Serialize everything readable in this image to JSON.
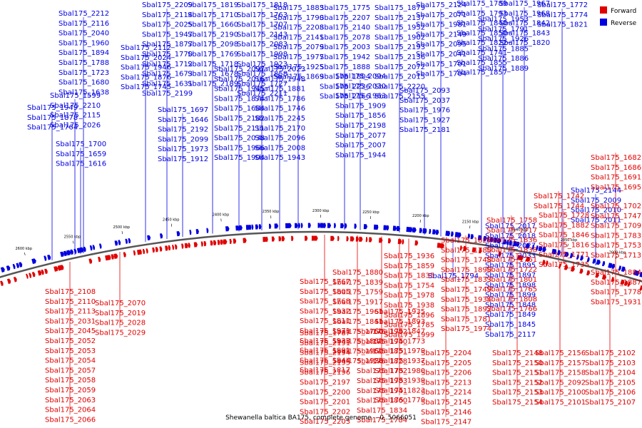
{
  "caption": "Shewanella baltica BA175, complete genome. - 0..5066051",
  "legend": {
    "forward": "Forward",
    "reverse": "Reverse"
  },
  "colors": {
    "forward": "#e00000",
    "reverse": "#0000e0",
    "forward_line": "#e33",
    "reverse_line": "#33e",
    "backbone": "#555"
  },
  "ticks": [
    "1900 kbp",
    "1950 kbp",
    "2000 kbp",
    "2050 kbp",
    "2100 kbp",
    "2150 kbp",
    "2200 kbp",
    "2250 kbp",
    "2300 kbp",
    "2350 kbp",
    "2400 kbp",
    "2450 kbp",
    "2500 kbp",
    "2550 kbp",
    "2600 kbp",
    "2650 kbp"
  ],
  "reverse_labels": [
    "Sbal175_2212",
    "Sbal175_2116",
    "Sbal175_2040",
    "Sbal175_1960",
    "Sbal175_1894",
    "Sbal175_1788",
    "Sbal175_1723",
    "Sbal175_1680",
    "Sbal175_1638",
    "Sbal175_1599",
    "Sbal175_2210",
    "Sbal175_2115",
    "Sbal175_2026",
    "Sbal175_1949",
    "Sbal175_1878",
    "Sbal175_1764",
    "Sbal175_1700",
    "Sbal175_1659",
    "Sbal175_1616",
    "Sbal175_2209",
    "Sbal175_2114",
    "Sbal175_2025",
    "Sbal175_1947",
    "Sbal175_1877",
    "Sbal175_1770",
    "Sbal175_1712",
    "Sbal175_1673",
    "Sbal175_1631",
    "Sbal175_2199",
    "Sbal175_2112",
    "Sbal175_2024",
    "Sbal175_1946",
    "Sbal175_1876",
    "Sbal175_1745",
    "Sbal175_1697",
    "Sbal175_1646",
    "Sbal175_2192",
    "Sbal175_2099",
    "Sbal175_1973",
    "Sbal175_1912",
    "Sbal175_1819",
    "Sbal175_1710",
    "Sbal175_1660",
    "Sbal175_2190",
    "Sbal175_2098",
    "Sbal175_1769",
    "Sbal175_1718",
    "Sbal175_1678",
    "Sbal175_2189",
    "Sbal175_2097",
    "Sbal175_2016",
    "Sbal175_1945",
    "Sbal175_1874",
    "Sbal175_1684",
    "Sbal175_2182",
    "Sbal175_2111",
    "Sbal175_2038",
    "Sbal175_1966",
    "Sbal175_1904",
    "Sbal175_1818",
    "Sbal175_1763",
    "Sbal175_1707",
    "Sbal175_2143",
    "Sbal175_2083",
    "Sbal175_1998",
    "Sbal175_1923",
    "Sbal175_1858",
    "Sbal175_1727",
    "Sbal175_2211",
    "Sbal175_2023",
    "Sbal175_1948",
    "Sbal175_1881",
    "Sbal175_1786",
    "Sbal175_1746",
    "Sbal175_2245",
    "Sbal175_2170",
    "Sbal175_2096",
    "Sbal175_2008",
    "Sbal175_1943",
    "Sbal175_1883",
    "Sbal175_1790",
    "Sbal175_2208",
    "Sbal175_2141",
    "Sbal175_2079",
    "Sbal175_1977",
    "Sbal175_1925",
    "Sbal175_1869",
    "Sbal175_1775",
    "Sbal175_2207",
    "Sbal175_2140",
    "Sbal175_2078",
    "Sbal175_2003",
    "Sbal175_1942",
    "Sbal175_1888",
    "Sbal175_1804",
    "Sbal175_2236",
    "Sbal175_2166",
    "Sbal175_2094",
    "Sbal175_2030",
    "Sbal175_1963",
    "Sbal175_1909",
    "Sbal175_1856",
    "Sbal175_2198",
    "Sbal175_2077",
    "Sbal175_2007",
    "Sbal175_1944",
    "Sbal175_1879",
    "Sbal175_2137",
    "Sbal175_1952",
    "Sbal175_1902",
    "Sbal175_2193",
    "Sbal175_2136",
    "Sbal175_2072",
    "Sbal175_2015",
    "Sbal175_2220",
    "Sbal175_2155",
    "Sbal175_2093",
    "Sbal175_2037",
    "Sbal175_1976",
    "Sbal175_1927",
    "Sbal175_2181",
    "Sbal175_2124",
    "Sbal175_2071",
    "Sbal175_1981",
    "Sbal175_2149",
    "Sbal175_2095",
    "Sbal175_2041",
    "Sbal175_1701",
    "Sbal175_1704",
    "Sbal175_1789",
    "Sbal175_1793",
    "Sbal175_1840",
    "Sbal175_1850",
    "Sbal175_1822",
    "Sbal175_1741",
    "Sbal175_1855",
    "Sbal175_1857",
    "Sbal175_1953",
    "Sbal175_1791",
    "Sbal175_1926",
    "Sbal175_1885",
    "Sbal175_1886",
    "Sbal175_1889",
    "Sbal175_1967",
    "Sbal175_1968",
    "Sbal175_1842",
    "Sbal175_1843",
    "Sbal175_1820",
    "Sbal175_1772",
    "Sbal175_1774",
    "Sbal175_1821",
    "Sbal175_2144",
    "Sbal175_2009",
    "Sbal175_2010",
    "Sbal175_2011",
    "Sbal175_2017",
    "Sbal175_2018",
    "Sbal175_2027",
    "Sbal175_2033",
    "Sbal175_1895",
    "Sbal175_1897",
    "Sbal175_1898",
    "Sbal175_1899",
    "Sbal175_1848",
    "Sbal175_1849",
    "Sbal175_1845",
    "Sbal175_2117",
    "Sbal175_1794"
  ],
  "forward_labels": [
    "Sbal175_1682",
    "Sbal175_1686",
    "Sbal175_1691",
    "Sbal175_1695",
    "Sbal175_1742",
    "Sbal175_1744",
    "Sbal175_1702",
    "Sbal175_1747",
    "Sbal175_1709",
    "Sbal175_1783",
    "Sbal175_1753",
    "Sbal175_1713",
    "Sbal175_1758",
    "Sbal175_1717",
    "Sbal175_1836",
    "Sbal175_1838",
    "Sbal175_1761",
    "Sbal175_1722",
    "Sbal175_1801",
    "Sbal175_1765",
    "Sbal175_1808",
    "Sbal175_1766",
    "Sbal175_1728",
    "Sbal175_1882",
    "Sbal175_1846",
    "Sbal175_1816",
    "Sbal175_1771",
    "Sbal175_1735",
    "Sbal175_1884",
    "Sbal175_1887",
    "Sbal175_1778",
    "Sbal175_1931",
    "Sbal175_1827",
    "Sbal175_1780",
    "Sbal175_1748",
    "Sbal175_1890",
    "Sbal175_1833",
    "Sbal175_1749",
    "Sbal175_1934",
    "Sbal175_1892",
    "Sbal175_1781",
    "Sbal175_1974",
    "Sbal175_1936",
    "Sbal175_1859",
    "Sbal175_1835",
    "Sbal175_1754",
    "Sbal175_1978",
    "Sbal175_1938",
    "Sbal175_1896",
    "Sbal175_1785",
    "Sbal175_1999",
    "Sbal175_1880",
    "Sbal175_1839",
    "Sbal175_1759",
    "Sbal175_1917",
    "Sbal175_1961",
    "Sbal175_1841",
    "Sbal175_1760",
    "Sbal175_1802",
    "Sbal175_1962",
    "Sbal175_1928",
    "Sbal175_1767",
    "Sbal175_1805",
    "Sbal175_1768",
    "Sbal175_1932",
    "Sbal175_1811",
    "Sbal175_1971",
    "Sbal175_1933",
    "Sbal175_1891",
    "Sbal175_1844",
    "Sbal175_1817",
    "Sbal175_1935",
    "Sbal175_1893",
    "Sbal175_1847",
    "Sbal175_1773",
    "Sbal175_1979",
    "Sbal175_1937",
    "Sbal175_1980",
    "Sbal175_1939",
    "Sbal175_1823",
    "Sbal175_1779",
    "Sbal175_1982",
    "Sbal175_1940",
    "Sbal175_1851",
    "Sbal175_1828",
    "Sbal175_1782",
    "Sbal175_1983",
    "Sbal175_1941",
    "Sbal175_1860",
    "Sbal175_1834",
    "Sbal175_1784",
    "Sbal175_1787",
    "Sbal175_2191",
    "Sbal175_2194",
    "Sbal175_2195",
    "Sbal175_2196",
    "Sbal175_2197",
    "Sbal175_2200",
    "Sbal175_2201",
    "Sbal175_2202",
    "Sbal175_2203",
    "Sbal175_2204",
    "Sbal175_2205",
    "Sbal175_2206",
    "Sbal175_2213",
    "Sbal175_2214",
    "Sbal175_2145",
    "Sbal175_2146",
    "Sbal175_2147",
    "Sbal175_2148",
    "Sbal175_2150",
    "Sbal175_2151",
    "Sbal175_2152",
    "Sbal175_2153",
    "Sbal175_2154",
    "Sbal175_2156",
    "Sbal175_2157",
    "Sbal175_2158",
    "Sbal175_2092",
    "Sbal175_2100",
    "Sbal175_2101",
    "Sbal175_2102",
    "Sbal175_2103",
    "Sbal175_2104",
    "Sbal175_2105",
    "Sbal175_2106",
    "Sbal175_2107",
    "Sbal175_2108",
    "Sbal175_2110",
    "Sbal175_2113",
    "Sbal175_2031",
    "Sbal175_2045",
    "Sbal175_2052",
    "Sbal175_2053",
    "Sbal175_2054",
    "Sbal175_2057",
    "Sbal175_2058",
    "Sbal175_2059",
    "Sbal175_2063",
    "Sbal175_2064",
    "Sbal175_2066",
    "Sbal175_2070",
    "Sbal175_2019",
    "Sbal175_2028",
    "Sbal175_2029"
  ]
}
